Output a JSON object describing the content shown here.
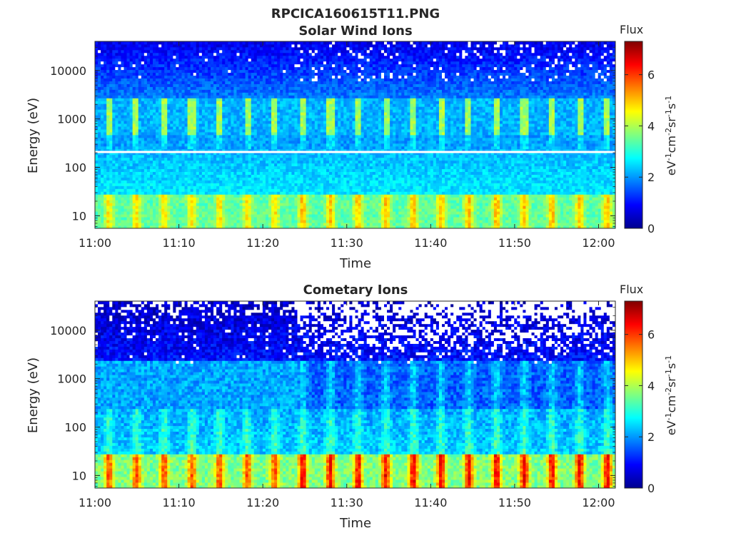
{
  "figure_title": "RPCICA160615T11.PNG",
  "chart_data": [
    {
      "type": "heatmap",
      "title": "Solar Wind Ions",
      "xlabel": "Time",
      "ylabel": "Energy (eV)",
      "x_ticks": [
        "11:00",
        "11:10",
        "11:20",
        "11:30",
        "11:40",
        "11:50",
        "12:00"
      ],
      "x_range": [
        "11:00",
        "12:02"
      ],
      "y_scale": "log",
      "y_ticks": [
        "10",
        "100",
        "1000",
        "10000"
      ],
      "y_range": [
        5.5,
        40000
      ],
      "colorbar": {
        "label": "Flux",
        "units": "eV-1cm-2sr-1s-1",
        "ticks": [
          "0",
          "2",
          "4",
          "6"
        ],
        "range": [
          0,
          7.3
        ],
        "colormap": "jet"
      },
      "features": [
        {
          "energy_eV": 10,
          "flux": 4.2,
          "note": "periodic bursts 20–30 eV"
        },
        {
          "energy_eV": 800,
          "flux": 3.8,
          "note": "periodic vertical streaks ~500–2500 eV"
        },
        {
          "energy_eV": 200,
          "flux": 2.5,
          "note": "background 100–300 eV"
        },
        {
          "energy_eV": 20000,
          "flux": 0.8,
          "note": "high-energy background"
        }
      ]
    },
    {
      "type": "heatmap",
      "title": "Cometary Ions",
      "xlabel": "Time",
      "ylabel": "Energy (eV)",
      "x_ticks": [
        "11:00",
        "11:10",
        "11:20",
        "11:30",
        "11:40",
        "11:50",
        "12:00"
      ],
      "x_range": [
        "11:00",
        "12:02"
      ],
      "y_scale": "log",
      "y_ticks": [
        "10",
        "100",
        "1000",
        "10000"
      ],
      "y_range": [
        5.5,
        40000
      ],
      "colorbar": {
        "label": "Flux",
        "units": "eV-1cm-2sr-1s-1",
        "ticks": [
          "0",
          "2",
          "4",
          "6"
        ],
        "range": [
          0,
          7.3
        ],
        "colormap": "jet"
      },
      "features": [
        {
          "energy_eV": 12,
          "flux": 5.5,
          "note": "periodic intense bursts 8–30 eV"
        },
        {
          "energy_eV": 100,
          "flux": 3.0,
          "note": "periodic tongues extending upward"
        },
        {
          "energy_eV": 20000,
          "flux": 0.5,
          "note": "sparse/no counts at high energy"
        }
      ]
    }
  ]
}
